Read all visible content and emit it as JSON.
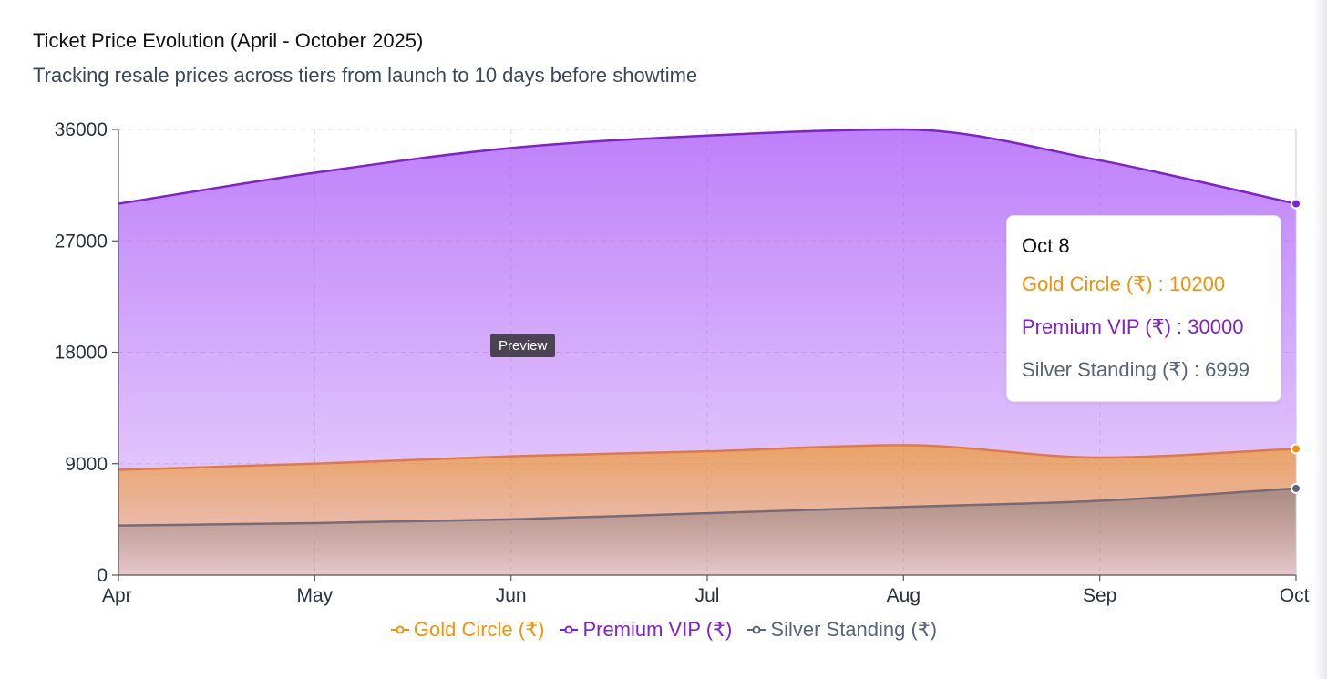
{
  "header": {
    "title": "Ticket Price Evolution (April - October 2025)",
    "subtitle": "Tracking resale prices across tiers from launch to 10 days before showtime"
  },
  "chart_data": {
    "type": "area",
    "categories": [
      "Apr",
      "May",
      "Jun",
      "Jul",
      "Aug",
      "Sep",
      "Oct 8"
    ],
    "series": [
      {
        "name": "Gold Circle (₹)",
        "color": "#f2920a",
        "values": [
          8500,
          9000,
          9600,
          10000,
          10500,
          9500,
          10200
        ]
      },
      {
        "name": "Premium VIP (₹)",
        "color": "#7e22ce",
        "values": [
          30000,
          32500,
          34500,
          35500,
          36000,
          33500,
          30000
        ]
      },
      {
        "name": "Silver Standing (₹)",
        "color": "#5a6478",
        "values": [
          4000,
          4200,
          4500,
          5000,
          5500,
          6000,
          6999
        ]
      }
    ],
    "ylim": [
      0,
      36000
    ],
    "yticks": [
      0,
      9000,
      18000,
      27000,
      36000
    ],
    "grid": true,
    "legend_position": "bottom-center"
  },
  "tooltip": {
    "title": "Oct 8",
    "rows": [
      {
        "text": "Gold Circle (₹) : 10200",
        "color": "#f2920a"
      },
      {
        "text": "Premium VIP (₹) : 30000",
        "color": "#7e22ce"
      },
      {
        "text": "Silver Standing (₹) : 6999",
        "color": "#5a6478"
      }
    ]
  },
  "preview_badge": {
    "label": "Preview"
  }
}
